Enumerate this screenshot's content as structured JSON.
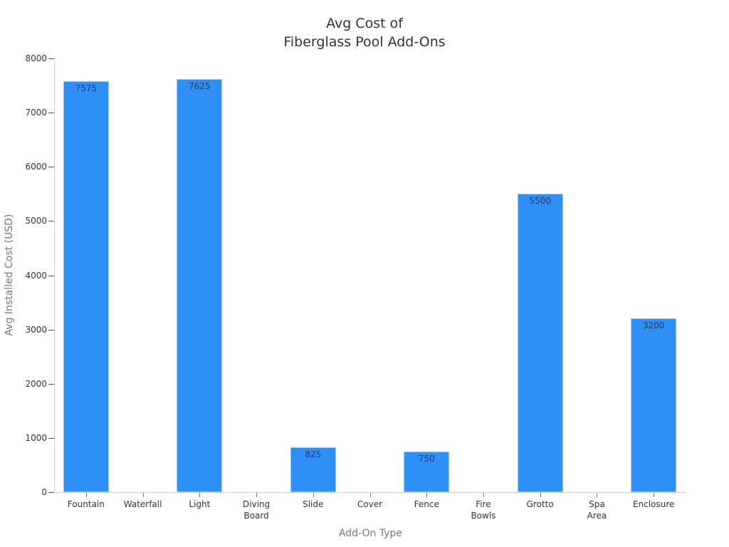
{
  "chart_data": {
    "type": "bar",
    "title": "Avg Cost of\nFiberglass Pool Add-Ons",
    "title_lines": [
      "Avg Cost of",
      "Fiberglass Pool Add-Ons"
    ],
    "xlabel": "Add-On Type",
    "ylabel": "Avg Installed Cost (USD)",
    "ylim": [
      0,
      8000
    ],
    "yticks": [
      0,
      1000,
      2000,
      3000,
      4000,
      5000,
      6000,
      7000,
      8000
    ],
    "categories": [
      "Fountain",
      "Waterfall",
      "Light",
      "Diving Board",
      "Slide",
      "Cover",
      "Fence",
      "Fire Bowls",
      "Grotto",
      "Spa Area",
      "Enclosure"
    ],
    "category_lines": [
      [
        "Fountain"
      ],
      [
        "Waterfall"
      ],
      [
        "Light"
      ],
      [
        "Diving",
        "Board"
      ],
      [
        "Slide"
      ],
      [
        "Cover"
      ],
      [
        "Fence"
      ],
      [
        "Fire",
        "Bowls"
      ],
      [
        "Grotto"
      ],
      [
        "Spa",
        "Area"
      ],
      [
        "Enclosure"
      ]
    ],
    "values": [
      7575,
      null,
      7625,
      null,
      825,
      null,
      750,
      null,
      5500,
      null,
      3200
    ],
    "data_labels": [
      "7575",
      "",
      "7625",
      "",
      "825",
      "",
      "750",
      "",
      "5500",
      "",
      "3200"
    ],
    "bar_color": "#2e8ff7",
    "grid": false,
    "legend": null
  }
}
